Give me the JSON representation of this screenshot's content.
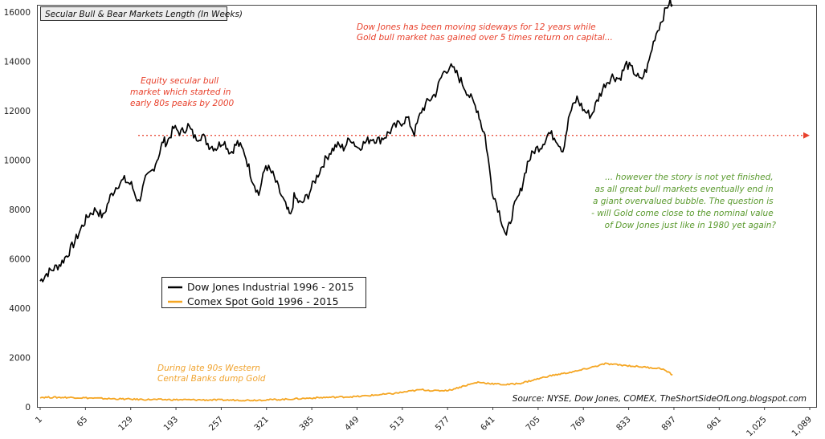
{
  "chart_data": {
    "type": "line",
    "title": "Secular Bull & Bear Markets Length (In Weeks)",
    "xlabel": "",
    "ylabel": "",
    "xlim": [
      1,
      1089
    ],
    "ylim": [
      0,
      16000
    ],
    "x_ticks": [
      "1",
      "65",
      "129",
      "193",
      "257",
      "321",
      "385",
      "449",
      "513",
      "577",
      "641",
      "705",
      "769",
      "833",
      "897",
      "961",
      "1,025",
      "1,089"
    ],
    "x_tick_values": [
      1,
      65,
      129,
      193,
      257,
      321,
      385,
      449,
      513,
      577,
      641,
      705,
      769,
      833,
      897,
      961,
      1025,
      1089
    ],
    "y_ticks": [
      "0",
      "2000",
      "4000",
      "6000",
      "8000",
      "10000",
      "12000",
      "14000",
      "16000"
    ],
    "y_tick_values": [
      0,
      2000,
      4000,
      6000,
      8000,
      10000,
      12000,
      14000,
      16000
    ],
    "grid": false,
    "legend_position": "center-left",
    "series": [
      {
        "name": "Dow Jones Industrial 1996 - 2015",
        "color": "#000000",
        "x": [
          1,
          10,
          20,
          30,
          40,
          50,
          60,
          70,
          80,
          90,
          100,
          110,
          120,
          130,
          140,
          150,
          160,
          170,
          175,
          180,
          190,
          200,
          210,
          220,
          230,
          240,
          250,
          260,
          270,
          280,
          290,
          300,
          310,
          320,
          330,
          340,
          350,
          355,
          360,
          370,
          380,
          390,
          400,
          410,
          420,
          430,
          440,
          450,
          460,
          470,
          480,
          490,
          500,
          510,
          520,
          530,
          540,
          550,
          560,
          570,
          580,
          590,
          600,
          610,
          620,
          625,
          630,
          640,
          650,
          660,
          670,
          680,
          690,
          700,
          710,
          720,
          730,
          740,
          750,
          760,
          770,
          780,
          790,
          800,
          810,
          820,
          830,
          840,
          850,
          860,
          870,
          880,
          890,
          895
        ],
        "y": [
          5100,
          5400,
          5600,
          5800,
          6200,
          6700,
          7300,
          7800,
          8000,
          7700,
          8500,
          9000,
          9200,
          9000,
          8300,
          9200,
          9600,
          10300,
          10800,
          10700,
          11300,
          11100,
          11400,
          10900,
          11000,
          10600,
          10500,
          10800,
          10300,
          10700,
          10300,
          9300,
          8600,
          9800,
          9400,
          8700,
          8000,
          7700,
          8500,
          8200,
          8600,
          9200,
          9800,
          10300,
          10600,
          10500,
          10900,
          10500,
          10700,
          10900,
          10800,
          11000,
          11300,
          11500,
          11700,
          11100,
          12000,
          12400,
          12700,
          13500,
          13800,
          13500,
          13000,
          12500,
          12000,
          11400,
          11000,
          8800,
          7900,
          6900,
          8000,
          8700,
          9900,
          10400,
          10600,
          11100,
          10900,
          10400,
          11900,
          12500,
          12000,
          11800,
          12500,
          13100,
          13400,
          13300,
          13900,
          13600,
          13200,
          13800,
          15000,
          15700,
          16400,
          16300
        ],
        "legend_swatch_y": 355
      },
      {
        "name": "Comex Spot Gold 1996 - 2015",
        "color": "#f5a623",
        "x": [
          1,
          50,
          100,
          150,
          200,
          250,
          300,
          350,
          400,
          450,
          500,
          520,
          540,
          560,
          580,
          600,
          620,
          640,
          660,
          680,
          700,
          720,
          740,
          760,
          780,
          800,
          820,
          840,
          860,
          880,
          895
        ],
        "y": [
          390,
          380,
          330,
          300,
          290,
          280,
          270,
          310,
          380,
          420,
          540,
          620,
          700,
          650,
          680,
          850,
          1000,
          940,
          900,
          960,
          1100,
          1250,
          1350,
          1450,
          1600,
          1750,
          1700,
          1650,
          1600,
          1550,
          1300
        ],
        "legend_swatch_y": 374
      }
    ],
    "reference_line": {
      "y": 11000,
      "color": "#e8412c",
      "style": "dotted"
    },
    "annotations": [
      {
        "lines": [
          "Equity secular bull",
          "market which started in",
          "early 80s peaks by 2000"
        ],
        "color": "#e8412c"
      },
      {
        "lines": [
          "Dow Jones has been moving sideways for 12 years while",
          "Gold bull market has gained over 5 times return on capital..."
        ],
        "color": "#e8412c"
      },
      {
        "lines": [
          "... however the story is not yet finished,",
          "as all great bull markets eventually end in",
          "a giant overvalued bubble. The question is",
          "- will Gold come close to the nominal value",
          "of Dow Jones just like in 1980 yet again?"
        ],
        "color": "#5a9a2e"
      },
      {
        "lines": [
          "During late 90s Western",
          "Central Banks dump Gold"
        ],
        "color": "#f0a430"
      }
    ],
    "source": "Source: NYSE, Dow Jones, COMEX, TheShortSideOfLong.blogspot.com"
  }
}
